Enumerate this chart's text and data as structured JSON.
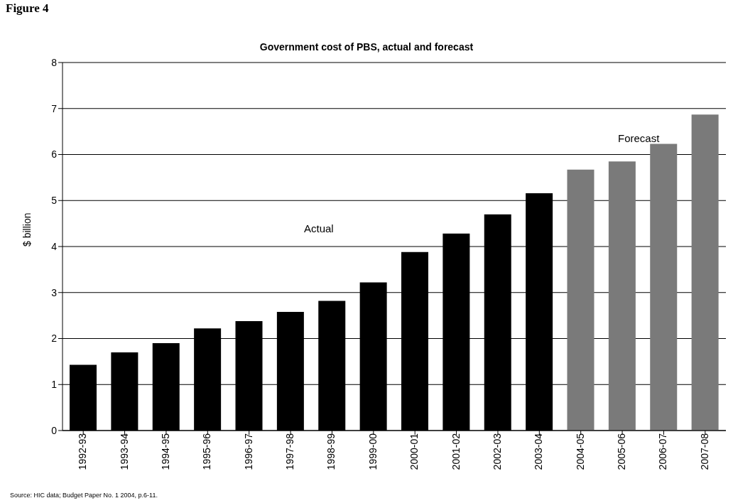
{
  "chart_data": {
    "type": "bar",
    "title": "Government cost of PBS, actual and forecast",
    "ylabel": "$ billion",
    "categories": [
      "1992-93",
      "1993-94",
      "1994-95",
      "1995-96",
      "1996-97",
      "1997-98",
      "1998-99",
      "1999-00",
      "2000-01",
      "2001-02",
      "2002-03",
      "2003-04",
      "2004-05",
      "2005-06",
      "2006-07",
      "2007-08"
    ],
    "values": [
      1.43,
      1.7,
      1.9,
      2.22,
      2.38,
      2.58,
      2.82,
      3.22,
      3.88,
      4.28,
      4.7,
      5.16,
      5.67,
      5.85,
      6.23,
      6.87
    ],
    "colors": [
      "#000000",
      "#000000",
      "#000000",
      "#000000",
      "#000000",
      "#000000",
      "#000000",
      "#000000",
      "#000000",
      "#000000",
      "#000000",
      "#000000",
      "#7a7a7a",
      "#7a7a7a",
      "#7a7a7a",
      "#7a7a7a"
    ],
    "ylim": [
      0,
      8
    ],
    "yticks": [
      0,
      1,
      2,
      3,
      4,
      5,
      6,
      7,
      8
    ],
    "grid": "y",
    "annotations": [
      "Figure 4",
      "Actual",
      "Forecast",
      "Source: HIC data; Budget Paper No. 1 2004, p.6-11."
    ]
  }
}
